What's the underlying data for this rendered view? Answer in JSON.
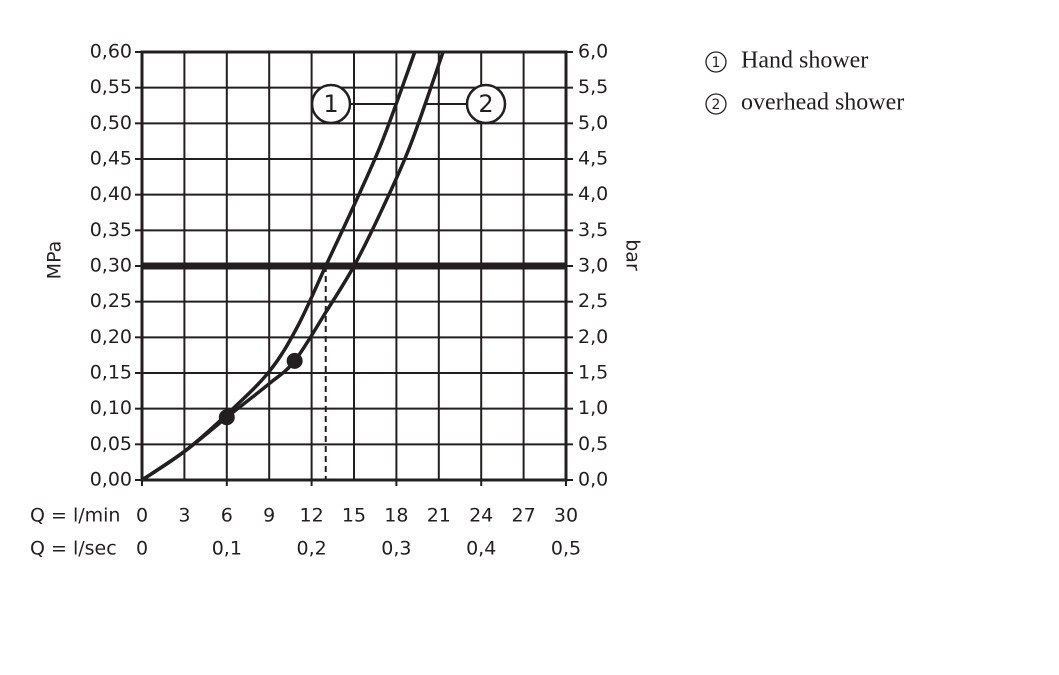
{
  "chart_data": {
    "type": "line",
    "ylabel": "MPa",
    "y2label": "bar",
    "xlabel": "Q = l/min",
    "x2label": "Q = l/sec",
    "xlim": [
      0,
      30
    ],
    "xticks": [
      0,
      3,
      6,
      9,
      12,
      15,
      18,
      21,
      24,
      27,
      30
    ],
    "x2lim": [
      0,
      0.5
    ],
    "x2ticks": [
      0,
      {
        "value": 0.1,
        "label": "0,1"
      },
      {
        "value": 0.2,
        "label": "0,2"
      },
      {
        "value": 0.3,
        "label": "0,3"
      },
      {
        "value": 0.4,
        "label": "0,4"
      },
      {
        "value": 0.5,
        "label": "0,5"
      }
    ],
    "ylim": [
      0,
      0.6
    ],
    "yticks": [
      {
        "value": 0,
        "label": "0,00"
      },
      {
        "value": 0.05,
        "label": "0,05"
      },
      {
        "value": 0.1,
        "label": "0,10"
      },
      {
        "value": 0.15,
        "label": "0,15"
      },
      {
        "value": 0.2,
        "label": "0,20"
      },
      {
        "value": 0.25,
        "label": "0,25"
      },
      {
        "value": 0.3,
        "label": "0,30"
      },
      {
        "value": 0.35,
        "label": "0,35"
      },
      {
        "value": 0.4,
        "label": "0,40"
      },
      {
        "value": 0.45,
        "label": "0,45"
      },
      {
        "value": 0.5,
        "label": "0,50"
      },
      {
        "value": 0.55,
        "label": "0,55"
      },
      {
        "value": 0.6,
        "label": "0,60"
      }
    ],
    "y2lim": [
      0,
      6
    ],
    "y2ticks": [
      {
        "value": 0,
        "label": "0,0"
      },
      {
        "value": 0.5,
        "label": "0,5"
      },
      {
        "value": 1,
        "label": "1,0"
      },
      {
        "value": 1.5,
        "label": "1,5"
      },
      {
        "value": 2,
        "label": "2,0"
      },
      {
        "value": 2.5,
        "label": "2,5"
      },
      {
        "value": 3,
        "label": "3,0"
      },
      {
        "value": 3.5,
        "label": "3,5"
      },
      {
        "value": 4,
        "label": "4,0"
      },
      {
        "value": 4.5,
        "label": "4,5"
      },
      {
        "value": 5,
        "label": "5,0"
      },
      {
        "value": 5.5,
        "label": "5,5"
      },
      {
        "value": 6,
        "label": "6,0"
      }
    ],
    "grid": true,
    "reference_line": 0.3,
    "drop_lines": [
      13,
      15
    ],
    "series": [
      {
        "name": "Hand shower",
        "label": "1",
        "color": "#231f20",
        "x": [
          0,
          3,
          6,
          9,
          11,
          13,
          15,
          17,
          19.3
        ],
        "values": [
          0,
          0.04,
          0.092,
          0.152,
          0.215,
          0.3,
          0.385,
          0.475,
          0.6
        ]
      },
      {
        "name": "overhead shower",
        "label": "2",
        "color": "#231f20",
        "x": [
          0,
          3,
          6,
          9,
          10.8,
          13,
          15,
          17,
          19,
          21.3
        ],
        "values": [
          0,
          0.04,
          0.088,
          0.135,
          0.167,
          0.235,
          0.3,
          0.38,
          0.47,
          0.6
        ]
      }
    ],
    "markers": {
      "x": [
        6,
        10.8
      ],
      "values": [
        0.088,
        0.167
      ]
    }
  }
}
